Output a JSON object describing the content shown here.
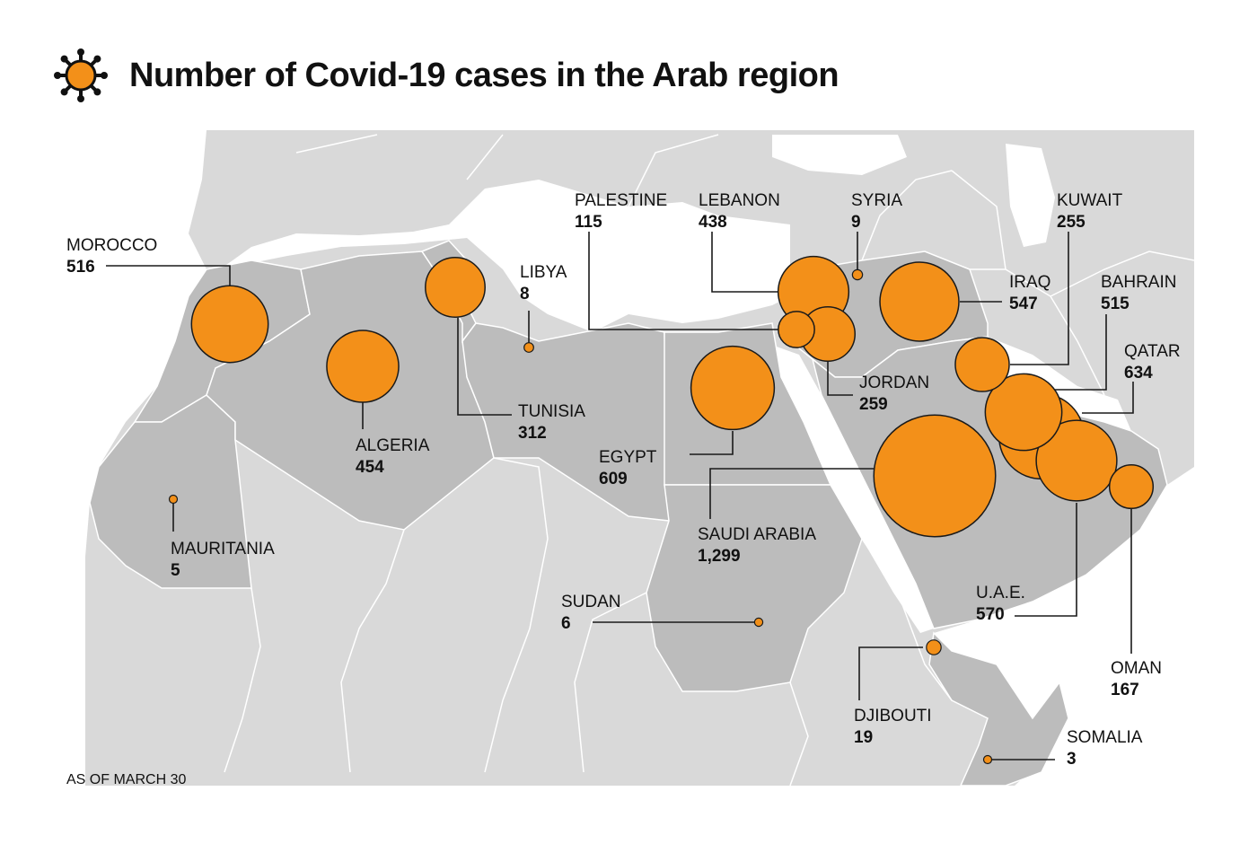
{
  "title": "Number of Covid-19 cases in the Arab region",
  "footnote": "AS OF MARCH 30",
  "icon": "virus-icon",
  "colors": {
    "bubble": "#f39019",
    "bubble_stroke": "#1a1a1a",
    "arab_land": "#bcbcbc",
    "other_land": "#d9d9d9",
    "water": "#ffffff",
    "border": "#ffffff"
  },
  "countries": [
    {
      "id": "morocco",
      "name": "MOROCCO",
      "cases": "516"
    },
    {
      "id": "algeria",
      "name": "ALGERIA",
      "cases": "454"
    },
    {
      "id": "tunisia",
      "name": "TUNISIA",
      "cases": "312"
    },
    {
      "id": "libya",
      "name": "LIBYA",
      "cases": "8"
    },
    {
      "id": "mauritania",
      "name": "MAURITANIA",
      "cases": "5"
    },
    {
      "id": "egypt",
      "name": "EGYPT",
      "cases": "609"
    },
    {
      "id": "sudan",
      "name": "SUDAN",
      "cases": "6"
    },
    {
      "id": "palestine",
      "name": "PALESTINE",
      "cases": "115"
    },
    {
      "id": "lebanon",
      "name": "LEBANON",
      "cases": "438"
    },
    {
      "id": "syria",
      "name": "SYRIA",
      "cases": "9"
    },
    {
      "id": "jordan",
      "name": "JORDAN",
      "cases": "259"
    },
    {
      "id": "iraq",
      "name": "IRAQ",
      "cases": "547"
    },
    {
      "id": "kuwait",
      "name": "KUWAIT",
      "cases": "255"
    },
    {
      "id": "bahrain",
      "name": "BAHRAIN",
      "cases": "515"
    },
    {
      "id": "qatar",
      "name": "QATAR",
      "cases": "634"
    },
    {
      "id": "saudi_arabia",
      "name": "SAUDI ARABIA",
      "cases": "1,299"
    },
    {
      "id": "uae",
      "name": "U.A.E.",
      "cases": "570"
    },
    {
      "id": "oman",
      "name": "OMAN",
      "cases": "167"
    },
    {
      "id": "djibouti",
      "name": "DJIBOUTI",
      "cases": "19"
    },
    {
      "id": "somalia",
      "name": "SOMALIA",
      "cases": "3"
    }
  ]
}
